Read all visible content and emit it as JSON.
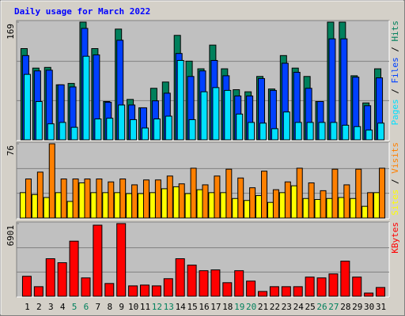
{
  "title": "Daily usage for March 2022",
  "categories": [
    "1",
    "2",
    "3",
    "4",
    "5",
    "6",
    "7",
    "8",
    "9",
    "10",
    "11",
    "12",
    "13",
    "14",
    "15",
    "16",
    "17",
    "18",
    "19",
    "20",
    "21",
    "22",
    "23",
    "24",
    "25",
    "26",
    "27",
    "28",
    "29",
    "30",
    "31"
  ],
  "category_colors": [
    "#000000",
    "#000000",
    "#000000",
    "#000000",
    "#00805c",
    "#00805c",
    "#000000",
    "#000000",
    "#000000",
    "#000000",
    "#000000",
    "#00805c",
    "#00805c",
    "#000000",
    "#000000",
    "#000000",
    "#000000",
    "#000000",
    "#00805c",
    "#00805c",
    "#000000",
    "#000000",
    "#000000",
    "#000000",
    "#000000",
    "#00805c",
    "#00805c",
    "#000000",
    "#000000",
    "#000000",
    "#000000"
  ],
  "legend_separator": " / ",
  "chart_data": [
    {
      "type": "bar",
      "ylim": [
        0,
        169
      ],
      "yticks": [
        169
      ],
      "series": [
        {
          "name": "Hits",
          "color": "#00805c",
          "values": [
            131,
            103,
            104,
            79,
            81,
            169,
            131,
            55,
            159,
            58,
            46,
            74,
            83,
            150,
            113,
            102,
            136,
            102,
            72,
            69,
            91,
            73,
            121,
            103,
            91,
            55,
            169,
            169,
            92,
            53,
            102
          ]
        },
        {
          "name": "Files",
          "color": "#0040ff",
          "values": [
            121,
            99,
            100,
            79,
            76,
            160,
            122,
            54,
            143,
            50,
            46,
            56,
            67,
            124,
            91,
            99,
            114,
            92,
            63,
            63,
            88,
            71,
            110,
            97,
            74,
            55,
            145,
            145,
            90,
            49,
            89
          ]
        },
        {
          "name": "Pages",
          "color": "#00e0ff",
          "values": [
            94,
            55,
            23,
            25,
            18,
            120,
            30,
            31,
            50,
            29,
            17,
            30,
            34,
            114,
            29,
            69,
            75,
            71,
            37,
            25,
            24,
            16,
            40,
            25,
            25,
            25,
            25,
            21,
            19,
            14,
            24
          ]
        }
      ]
    },
    {
      "type": "bar",
      "ylim": [
        0,
        76
      ],
      "yticks": [
        76
      ],
      "series": [
        {
          "name": "Visits",
          "color": "#ff8000",
          "values": [
            40,
            47,
            76,
            40,
            40,
            40,
            40,
            37,
            40,
            34,
            39,
            39,
            43,
            35,
            51,
            34,
            43,
            50,
            41,
            31,
            48,
            29,
            37,
            51,
            36,
            28,
            50,
            34,
            50,
            26,
            51
          ]
        },
        {
          "name": "Sites",
          "color": "#ffff00",
          "values": [
            26,
            24,
            21,
            26,
            17,
            36,
            26,
            26,
            26,
            25,
            25,
            26,
            30,
            32,
            25,
            29,
            26,
            26,
            20,
            18,
            23,
            16,
            26,
            33,
            20,
            19,
            20,
            21,
            20,
            12,
            26
          ]
        }
      ]
    },
    {
      "type": "bar",
      "ylim": [
        0,
        6901
      ],
      "yticks": [
        6901
      ],
      "series": [
        {
          "name": "KBytes",
          "color": "#ff0000",
          "values": [
            1896,
            910,
            3564,
            3185,
            5233,
            1744,
            6750,
            1213,
            6901,
            986,
            1062,
            986,
            1668,
            3564,
            2958,
            2427,
            2503,
            1289,
            2427,
            1441,
            455,
            910,
            910,
            910,
            1820,
            1744,
            2123,
            3337,
            1820,
            303,
            834
          ]
        }
      ]
    }
  ]
}
